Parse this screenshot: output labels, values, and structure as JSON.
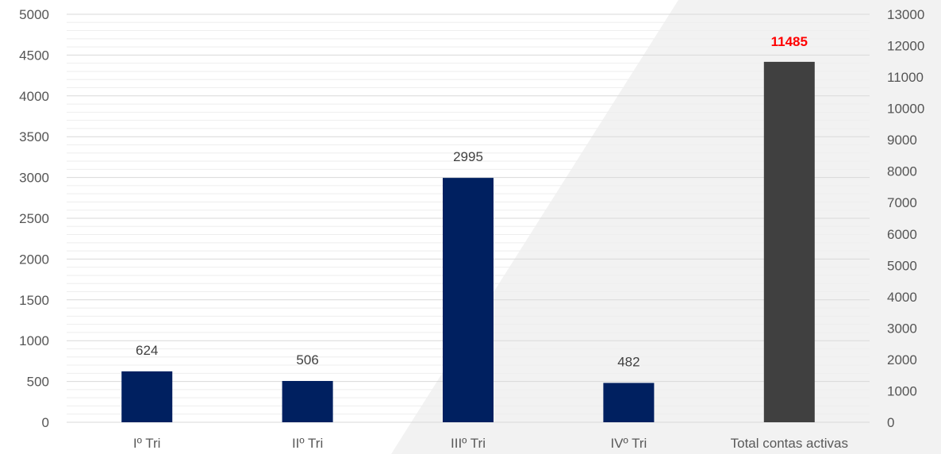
{
  "chart_data": {
    "type": "bar",
    "categories": [
      "Iº Tri",
      "IIº Tri",
      "IIIº Tri",
      "IVº Tri",
      "Total contas activas"
    ],
    "series": [
      {
        "axis": "left",
        "values": [
          624,
          506,
          2995,
          482,
          null
        ],
        "color": "#002060"
      },
      {
        "axis": "right",
        "values": [
          null,
          null,
          null,
          null,
          11485
        ],
        "color": "#404040"
      }
    ],
    "data_labels": [
      "624",
      "506",
      "2995",
      "482",
      "11485"
    ],
    "highlight_label_color": "#ff0000",
    "ylim_left": [
      0,
      5000
    ],
    "yticks_left": [
      0,
      500,
      1000,
      1500,
      2000,
      2500,
      3000,
      3500,
      4000,
      4500,
      5000
    ],
    "ylim_right": [
      0,
      13000
    ],
    "yticks_right": [
      0,
      1000,
      2000,
      3000,
      4000,
      5000,
      6000,
      7000,
      8000,
      9000,
      10000,
      11000,
      12000,
      13000
    ],
    "grid": true,
    "legend": "none"
  }
}
